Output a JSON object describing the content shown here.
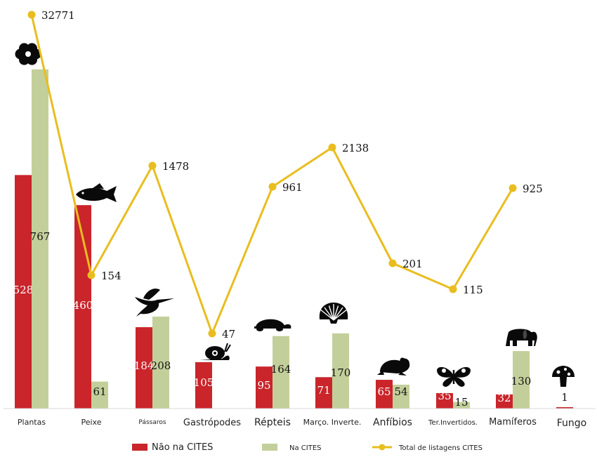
{
  "chart_data": {
    "type": "bar",
    "title": "",
    "xlabel": "",
    "ylabel": "",
    "categories": [
      "Plantas",
      "Peixe",
      "Pássaros",
      "Gastrópodes",
      "Répteis",
      "Março. Inverte.",
      "Anfíbios",
      "Ter.Invertidos.",
      "Mamíferos",
      "Fungo"
    ],
    "category_icons": [
      "flower-icon",
      "fish-icon",
      "bird-icon",
      "snail-icon",
      "turtle-icon",
      "shell-icon",
      "frog-icon",
      "butterfly-icon",
      "elephant-icon",
      "mushroom-icon"
    ],
    "series": [
      {
        "name": "Não na CITES",
        "kind": "bar",
        "color": "#c9252b",
        "values": [
          528,
          460,
          184,
          105,
          95,
          71,
          65,
          35,
          32,
          1
        ],
        "labels": [
          "528",
          "460",
          "184",
          "105",
          "95",
          "71",
          "65",
          "35",
          "32",
          "1"
        ]
      },
      {
        "name": "Na CITES",
        "kind": "bar",
        "color": "#c3cf9a",
        "values": [
          767,
          61,
          208,
          null,
          164,
          170,
          54,
          15,
          130,
          null
        ],
        "labels": [
          "767",
          "61",
          "208",
          "",
          "164",
          "170",
          "54",
          "15",
          "130",
          ""
        ]
      },
      {
        "name": "Total de listagens CITES",
        "kind": "line",
        "color": "#e9bd1f",
        "values": [
          32771,
          154,
          1478,
          47,
          961,
          2138,
          201,
          115,
          925,
          null
        ],
        "labels": [
          "32771",
          "154",
          "1478",
          "47",
          "961",
          "2138",
          "201",
          "115",
          "925",
          ""
        ]
      }
    ],
    "legend": {
      "position": "bottom",
      "entries": [
        "Não na CITES",
        "Na CITES",
        "Total de listagens CITES"
      ]
    }
  }
}
